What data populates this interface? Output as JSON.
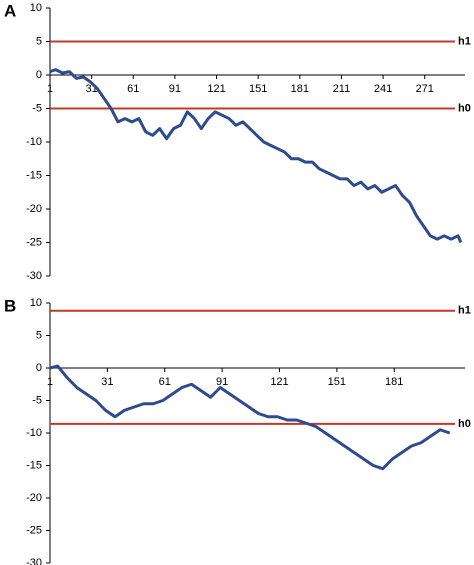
{
  "chart_data": [
    {
      "type": "line",
      "panel": "A",
      "x": [
        1,
        5,
        10,
        15,
        20,
        25,
        30,
        35,
        40,
        45,
        50,
        55,
        60,
        65,
        70,
        75,
        80,
        85,
        90,
        95,
        100,
        105,
        110,
        115,
        120,
        125,
        130,
        135,
        140,
        145,
        150,
        155,
        160,
        165,
        170,
        175,
        180,
        185,
        190,
        195,
        200,
        205,
        210,
        215,
        220,
        225,
        230,
        235,
        240,
        245,
        250,
        255,
        260,
        265,
        270,
        275,
        280,
        285,
        290,
        295,
        297
      ],
      "values": [
        0.5,
        0.8,
        0.3,
        0.5,
        -0.5,
        -0.3,
        -1,
        -2,
        -3.5,
        -5,
        -7,
        -6.5,
        -7,
        -6.5,
        -8.5,
        -9,
        -8,
        -9.5,
        -8,
        -7.5,
        -5.5,
        -6.5,
        -8,
        -6.5,
        -5.5,
        -6,
        -6.5,
        -7.5,
        -7,
        -8,
        -9,
        -10,
        -10.5,
        -11,
        -11.5,
        -12.5,
        -12.5,
        -13,
        -13,
        -14,
        -14.5,
        -15,
        -15.5,
        -15.5,
        -16.5,
        -16,
        -17,
        -16.5,
        -17.5,
        -17,
        -16.5,
        -18,
        -19,
        -21,
        -22.5,
        -24,
        -24.5,
        -24,
        -24.5,
        -24,
        -25
      ],
      "color": "#2f4b8f",
      "xlim": [
        1,
        300
      ],
      "xticks": [
        1,
        31,
        61,
        91,
        121,
        151,
        181,
        211,
        241,
        271
      ],
      "ylim": [
        -30,
        10
      ],
      "yticks": [
        -30,
        -25,
        -20,
        -15,
        -10,
        -5,
        0,
        5,
        10
      ],
      "reference_lines": [
        {
          "name": "h1",
          "value": 5,
          "color": "#c0392b"
        },
        {
          "name": "h0",
          "value": -5,
          "color": "#c0392b"
        }
      ]
    },
    {
      "type": "line",
      "panel": "B",
      "x": [
        1,
        5,
        10,
        15,
        20,
        25,
        30,
        35,
        40,
        45,
        50,
        55,
        60,
        65,
        70,
        75,
        80,
        85,
        90,
        95,
        100,
        105,
        110,
        115,
        120,
        125,
        130,
        135,
        140,
        145,
        150,
        155,
        160,
        165,
        170,
        175,
        180,
        185,
        190,
        195,
        200,
        205,
        210
      ],
      "values": [
        0,
        0.3,
        -1.5,
        -3,
        -4,
        -5,
        -6.5,
        -7.5,
        -6.5,
        -6,
        -5.5,
        -5.5,
        -5,
        -4,
        -3,
        -2.5,
        -3.5,
        -4.5,
        -3,
        -4,
        -5,
        -6,
        -7,
        -7.5,
        -7.5,
        -8,
        -8,
        -8.5,
        -9,
        -10,
        -11,
        -12,
        -13,
        -14,
        -15,
        -15.5,
        -14,
        -13,
        -12,
        -11.5,
        -10.5,
        -9.5,
        -10
      ],
      "color": "#2f4b8f",
      "xlim": [
        1,
        218
      ],
      "xticks": [
        1,
        31,
        61,
        91,
        121,
        151,
        181
      ],
      "ylim": [
        -30,
        10
      ],
      "yticks": [
        -30,
        -25,
        -20,
        -15,
        -10,
        -5,
        0,
        5,
        10
      ],
      "reference_lines": [
        {
          "name": "h1",
          "value": 8.8,
          "color": "#c0392b"
        },
        {
          "name": "h0",
          "value": -8.6,
          "color": "#c0392b"
        }
      ]
    }
  ]
}
